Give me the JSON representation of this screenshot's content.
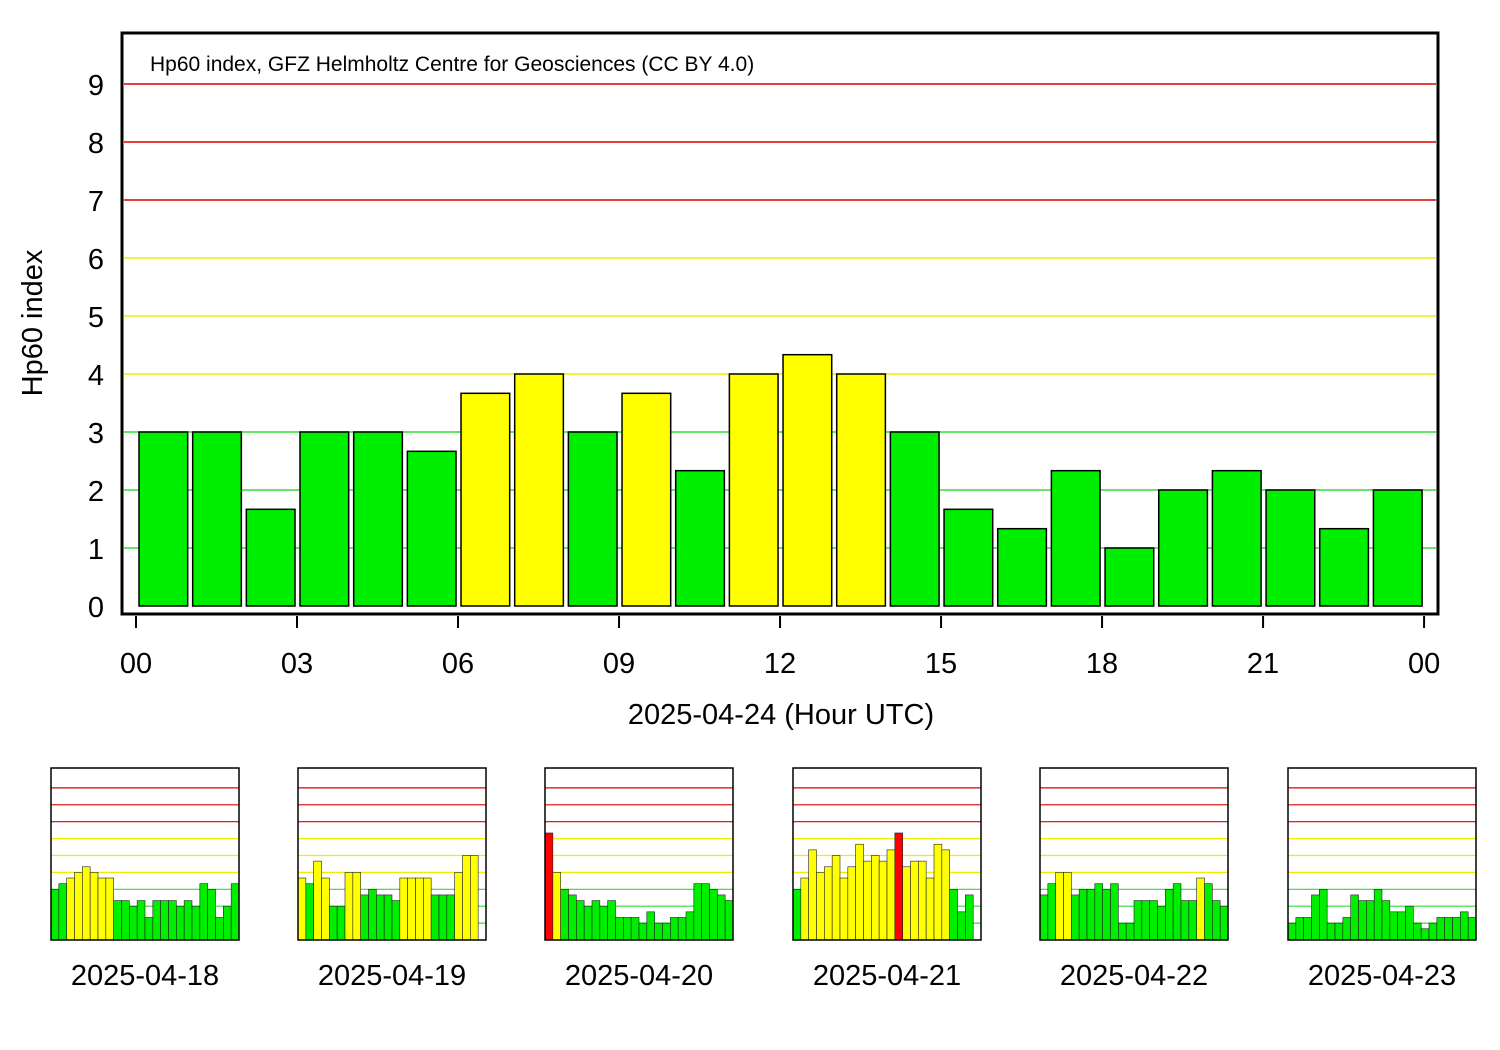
{
  "chart_data": {
    "type": "bar",
    "annotation": "Hp60 index, GFZ Helmholtz Centre for Geosciences (CC BY 4.0)",
    "xlabel": "2025-04-24 (Hour UTC)",
    "ylabel": "Hp60 index",
    "ylim": [
      0,
      9.9
    ],
    "yticks": [
      "0",
      "1",
      "2",
      "3",
      "4",
      "5",
      "6",
      "7",
      "8",
      "9"
    ],
    "xticks": [
      "00",
      "03",
      "06",
      "09",
      "12",
      "15",
      "18",
      "21",
      "00"
    ],
    "grid": true,
    "colors": {
      "quiet": "#00ee00",
      "active": "#ffff00",
      "storm": "#ff0000",
      "grid_quiet": "#33dd33",
      "grid_active": "#eeee00",
      "grid_storm": "#dd0000"
    },
    "values": [
      3,
      3,
      1.667,
      3,
      3,
      2.667,
      3.667,
      4,
      3,
      3.667,
      2.333,
      4,
      4.333,
      4,
      3,
      1.667,
      1.333,
      2.333,
      1,
      2,
      2.333,
      2,
      1.333,
      2
    ],
    "history": [
      {
        "date": "2025-04-18",
        "values": [
          3,
          3.333,
          3.667,
          4,
          4.333,
          4,
          3.667,
          3.667,
          2.333,
          2.333,
          2,
          2.333,
          1.333,
          2.333,
          2.333,
          2.333,
          2,
          2.333,
          2,
          3.333,
          3,
          1.333,
          2,
          3.333
        ]
      },
      {
        "date": "2025-04-19",
        "values": [
          3.667,
          3.333,
          4.667,
          3.667,
          2,
          2,
          4,
          4,
          2.667,
          3,
          2.667,
          2.667,
          2.333,
          3.667,
          3.667,
          3.667,
          3.667,
          2.667,
          2.667,
          2.667,
          4,
          5,
          5,
          0
        ]
      },
      {
        "date": "2025-04-20",
        "values": [
          6.333,
          4,
          3,
          2.667,
          2.333,
          2,
          2.333,
          2,
          2.333,
          1.333,
          1.333,
          1.333,
          1,
          1.667,
          1,
          1,
          1.333,
          1.333,
          1.667,
          3.333,
          3.333,
          3,
          2.667,
          2.333
        ]
      },
      {
        "date": "2025-04-21",
        "values": [
          3,
          3.667,
          5.333,
          4,
          4.333,
          5,
          3.667,
          4.333,
          5.667,
          4.667,
          5,
          4.667,
          5.333,
          6.333,
          4.333,
          4.667,
          4.667,
          3.667,
          5.667,
          5.333,
          3,
          1.667,
          2.667,
          0
        ]
      },
      {
        "date": "2025-04-22",
        "values": [
          2.667,
          3.333,
          4,
          4,
          2.667,
          3,
          3,
          3.333,
          3,
          3.333,
          1,
          1,
          2.333,
          2.333,
          2.333,
          2,
          3,
          3.333,
          2.333,
          2.333,
          3.667,
          3.333,
          2.333,
          2
        ]
      },
      {
        "date": "2025-04-23",
        "values": [
          1,
          1.333,
          1.333,
          2.667,
          3,
          1,
          1,
          1.333,
          2.667,
          2.333,
          2.333,
          3,
          2.333,
          1.667,
          1.667,
          2,
          1,
          0.667,
          1,
          1.333,
          1.333,
          1.333,
          1.667,
          1.333
        ]
      }
    ]
  }
}
